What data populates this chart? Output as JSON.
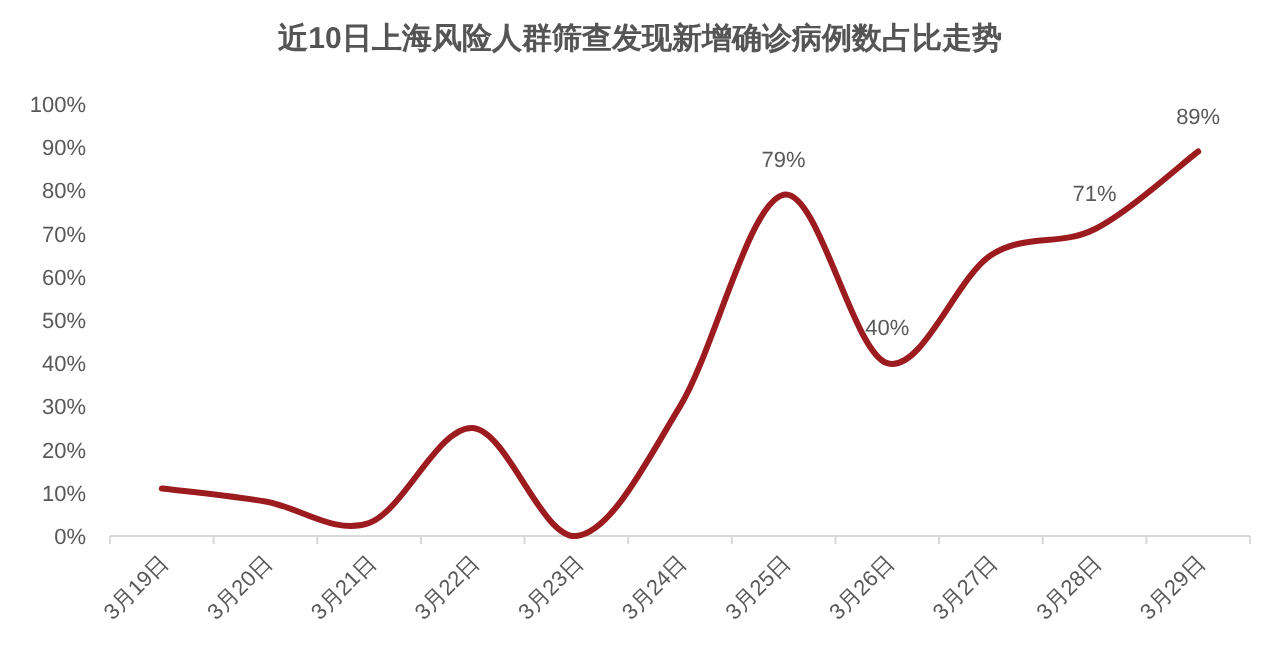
{
  "chart_data": {
    "type": "line",
    "title": "近10日上海风险人群筛查发现新增确诊病例数占比走势",
    "categories": [
      "3月19日",
      "3月20日",
      "3月21日",
      "3月22日",
      "3月23日",
      "3月24日",
      "3月25日",
      "3月26日",
      "3月27日",
      "3月28日",
      "3月29日"
    ],
    "series": [
      {
        "color": "#9b1b1f",
        "values": [
          11,
          8,
          3,
          25,
          0,
          30,
          79,
          40,
          65,
          71,
          89
        ],
        "value_labels": [
          null,
          null,
          null,
          null,
          null,
          null,
          "79%",
          "40%",
          null,
          "71%",
          "89%"
        ]
      }
    ],
    "ylim": [
      0,
      100
    ],
    "yticks": [
      {
        "value": 0,
        "label": "0%"
      },
      {
        "value": 10,
        "label": "10%"
      },
      {
        "value": 20,
        "label": "20%"
      },
      {
        "value": 30,
        "label": "30%"
      },
      {
        "value": 40,
        "label": "40%"
      },
      {
        "value": 50,
        "label": "50%"
      },
      {
        "value": 60,
        "label": "60%"
      },
      {
        "value": 70,
        "label": "70%"
      },
      {
        "value": 80,
        "label": "80%"
      },
      {
        "value": 90,
        "label": "90%"
      },
      {
        "value": 100,
        "label": "100%"
      }
    ],
    "grid": false,
    "marker": "none",
    "line_style": "solid"
  }
}
